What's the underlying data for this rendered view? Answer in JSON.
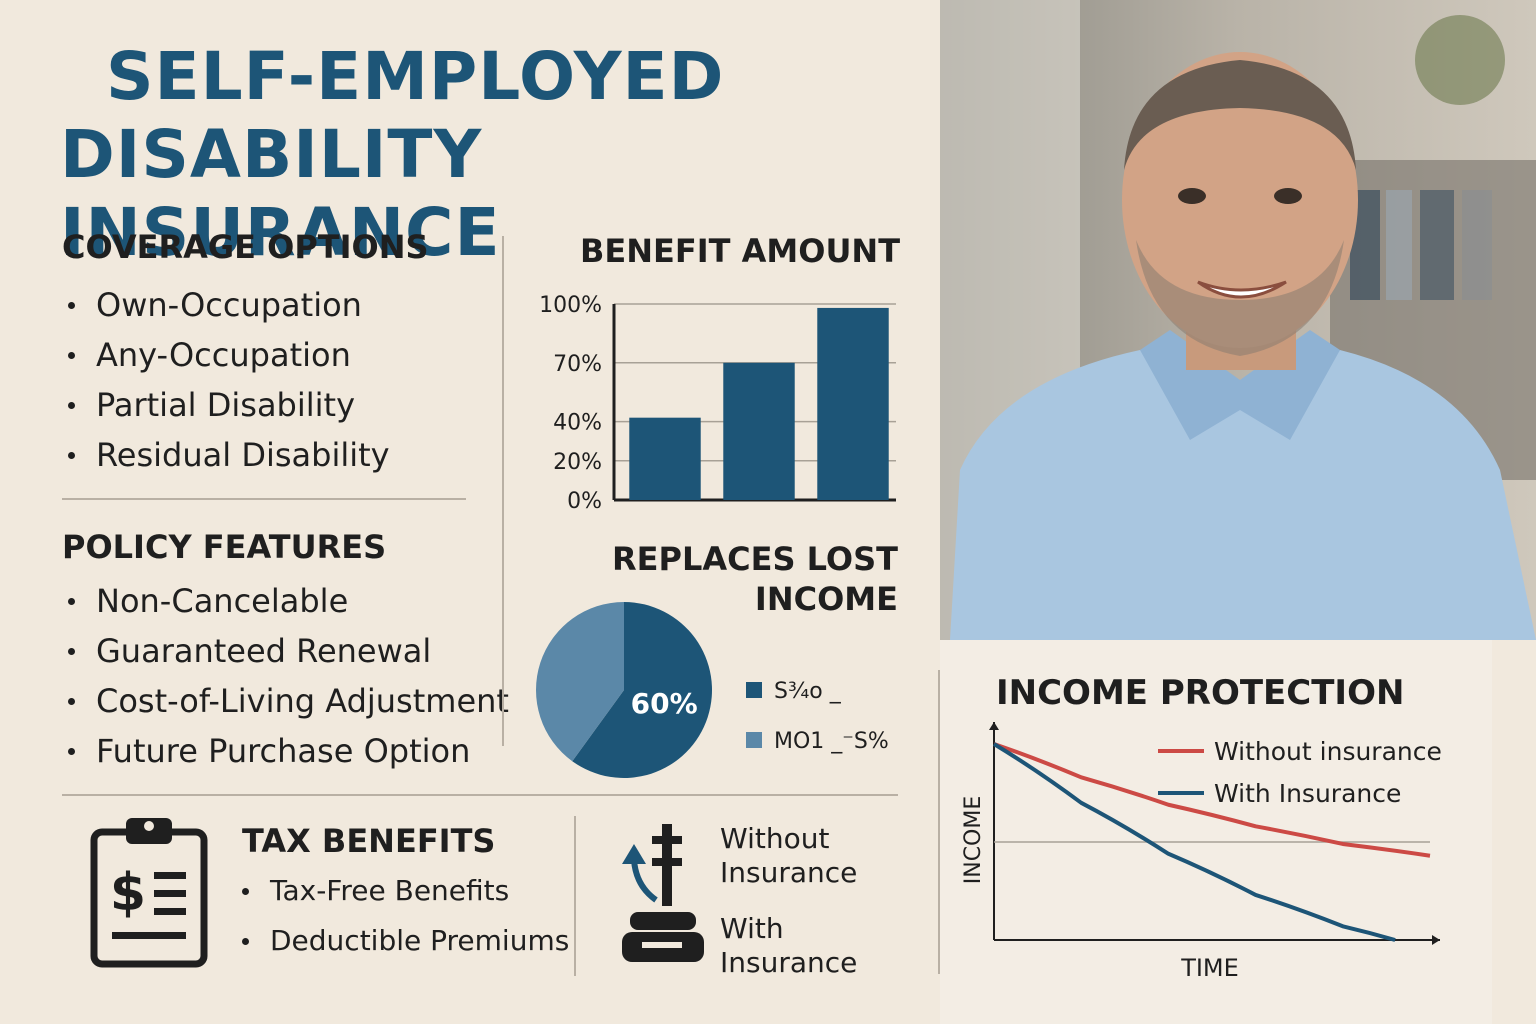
{
  "title": {
    "line1": "SELF-EMPLOYED",
    "line2": "DISABILITY INSURANCE"
  },
  "coverage": {
    "heading": "COVERAGE OPTIONS",
    "items": [
      "Own-Occupation",
      "Any-Occupation",
      "Partial Disability",
      "Residual Disability"
    ]
  },
  "policy": {
    "heading": "POLICY FEATURES",
    "items": [
      "Non-Cancelable",
      "Guaranteed Renewal",
      "Cost-of-Living Adjustment",
      "Future Purchase Option"
    ]
  },
  "tax": {
    "heading": "TAX BENEFITS",
    "items": [
      "Tax-Free Benefits",
      "Deductible Premiums"
    ],
    "icon": "clipboard-dollar-icon"
  },
  "comparison": {
    "icon": "scale-icon",
    "without_line1": "Without",
    "without_line2": "Insurance",
    "with_line1": "With",
    "with_line2": "Insurance"
  },
  "colors": {
    "title": "#1d5577",
    "bar": "#1d5577",
    "pie_light": "#5b88a8",
    "red": "#cc4a45",
    "blue": "#1d5577"
  },
  "chart_data": [
    {
      "type": "bar",
      "title": "BENEFIT AMOUNT",
      "tick_labels": [
        "0%",
        "20%",
        "40%",
        "70%",
        "100%"
      ],
      "ticks": [
        0,
        20,
        40,
        70,
        100
      ],
      "values": [
        42,
        70,
        98
      ],
      "ylim": [
        0,
        100
      ],
      "grid": true
    },
    {
      "type": "pie",
      "title_line1": "REPLACES LOST",
      "title_line2": "INCOME",
      "slices": [
        {
          "label": "60%",
          "value": 60,
          "color": "#1d5577"
        },
        {
          "label": "",
          "value": 40,
          "color": "#5b88a8"
        }
      ],
      "legend": [
        {
          "text": "S¾o _",
          "color": "#1d5577"
        },
        {
          "text": "MO1 _⁻S%",
          "color": "#5b88a8"
        }
      ]
    },
    {
      "type": "line",
      "title": "INCOME PROTECTION",
      "xlabel": "TIME",
      "ylabel": "INCOME",
      "xlim": [
        0,
        10
      ],
      "ylim": [
        0,
        10
      ],
      "series": [
        {
          "name": "Without insurance",
          "color": "#cc4a45",
          "x": [
            0,
            2,
            4,
            6,
            8,
            10
          ],
          "y": [
            10,
            8.3,
            6.9,
            5.8,
            4.9,
            4.3
          ]
        },
        {
          "name": "With Insurance",
          "color": "#1d5577",
          "x": [
            0,
            2,
            4,
            6,
            8,
            9.2
          ],
          "y": [
            10,
            7.0,
            4.4,
            2.3,
            0.7,
            0
          ]
        }
      ],
      "legend_position": "top-right"
    }
  ]
}
